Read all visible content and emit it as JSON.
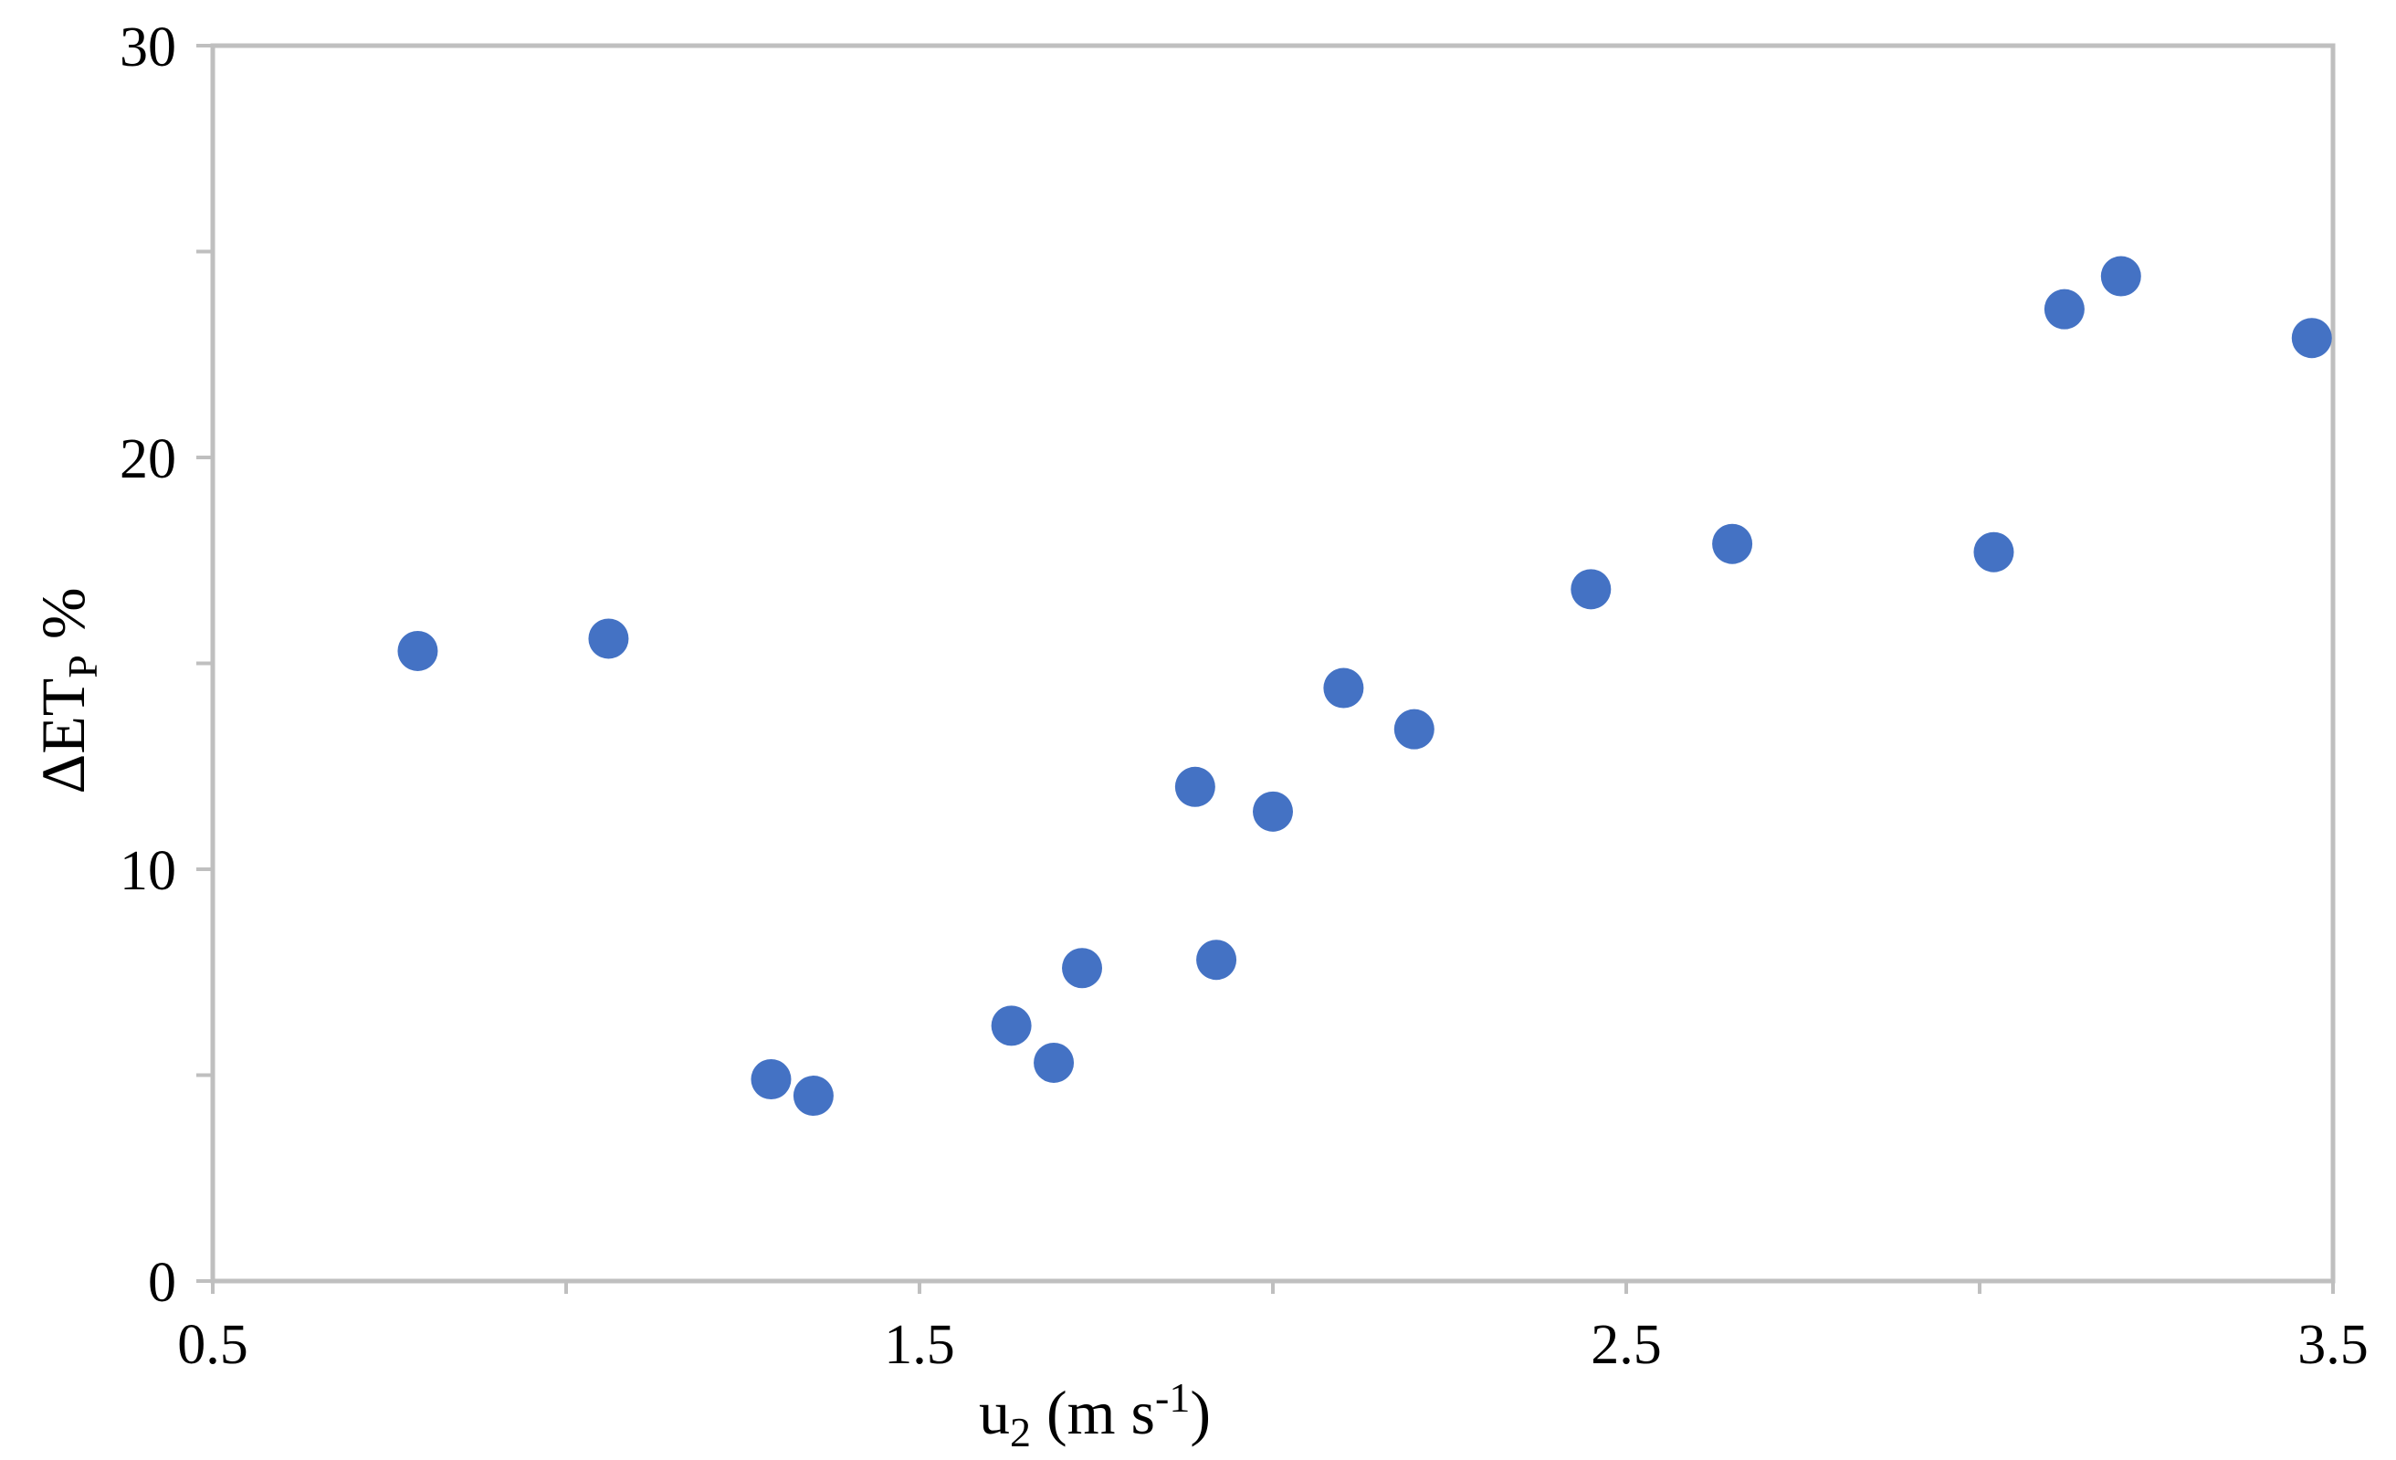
{
  "chart_data": {
    "type": "scatter",
    "title": "",
    "xlabel": {
      "main": "u",
      "sub": "2",
      "unit_pre": " (m s",
      "unit_sup": "-1",
      "unit_post": ")"
    },
    "ylabel": {
      "main": "ΔET",
      "sub": "P",
      "post": " %"
    },
    "xlim": [
      0.5,
      3.5
    ],
    "ylim": [
      0,
      30
    ],
    "xticks": [
      0.5,
      1.0,
      1.5,
      2.0,
      2.5,
      3.0,
      3.5
    ],
    "xtick_labels": [
      "0.5",
      "",
      "1.5",
      "",
      "2.5",
      "",
      "3.5"
    ],
    "yticks": [
      0,
      5,
      10,
      15,
      20,
      25,
      30
    ],
    "ytick_labels": [
      "0",
      "",
      "10",
      "",
      "20",
      "",
      "30"
    ],
    "grid": false,
    "legend": "none",
    "marker_color": "#4472c4",
    "axis_color": "#bfbfbf",
    "series": [
      {
        "points": [
          [
            0.79,
            15.3
          ],
          [
            1.06,
            15.6
          ],
          [
            1.29,
            4.9
          ],
          [
            1.35,
            4.5
          ],
          [
            1.63,
            6.2
          ],
          [
            1.69,
            5.3
          ],
          [
            1.73,
            7.6
          ],
          [
            1.89,
            12.0
          ],
          [
            1.92,
            7.8
          ],
          [
            2.0,
            11.4
          ],
          [
            2.1,
            14.4
          ],
          [
            2.2,
            13.4
          ],
          [
            2.45,
            16.8
          ],
          [
            2.65,
            17.9
          ],
          [
            3.02,
            17.7
          ],
          [
            3.12,
            23.6
          ],
          [
            3.2,
            24.4
          ],
          [
            3.47,
            22.9
          ]
        ]
      }
    ]
  }
}
